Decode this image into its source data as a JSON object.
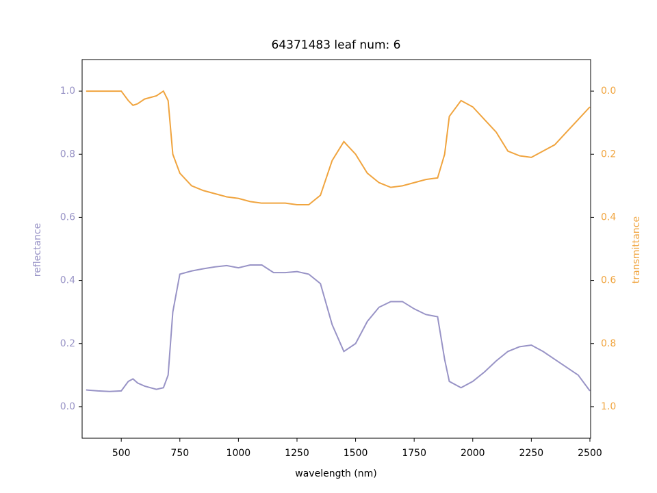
{
  "chart_data": {
    "type": "line",
    "title": "64371483 leaf num: 6",
    "xlabel": "wavelength (nm)",
    "ylabel": "reflectance",
    "y2label": "transmittance",
    "x": [
      350,
      400,
      450,
      500,
      530,
      550,
      570,
      600,
      650,
      680,
      700,
      720,
      750,
      800,
      850,
      900,
      950,
      1000,
      1050,
      1100,
      1150,
      1200,
      1250,
      1300,
      1350,
      1400,
      1450,
      1500,
      1550,
      1600,
      1650,
      1700,
      1750,
      1800,
      1850,
      1880,
      1900,
      1950,
      2000,
      2050,
      2100,
      2150,
      2200,
      2250,
      2300,
      2350,
      2400,
      2450,
      2500
    ],
    "series": [
      {
        "name": "reflectance",
        "color": "#9893c6",
        "values": [
          0.053,
          0.05,
          0.048,
          0.05,
          0.08,
          0.088,
          0.075,
          0.065,
          0.055,
          0.06,
          0.1,
          0.3,
          0.42,
          0.43,
          0.437,
          0.443,
          0.447,
          0.44,
          0.449,
          0.449,
          0.425,
          0.425,
          0.428,
          0.42,
          0.39,
          0.26,
          0.175,
          0.2,
          0.27,
          0.315,
          0.333,
          0.333,
          0.31,
          0.292,
          0.285,
          0.15,
          0.08,
          0.06,
          0.08,
          0.11,
          0.145,
          0.175,
          0.19,
          0.195,
          0.175,
          0.15,
          0.125,
          0.1,
          0.05
        ]
      },
      {
        "name": "transmittance",
        "color": "#f0a43e",
        "axis": "y2",
        "values": [
          0,
          0,
          0,
          0,
          0.03,
          0.045,
          0.04,
          0.025,
          0.015,
          0,
          0.03,
          0.2,
          0.26,
          0.3,
          0.315,
          0.325,
          0.335,
          0.34,
          0.35,
          0.355,
          0.355,
          0.355,
          0.36,
          0.36,
          0.33,
          0.22,
          0.16,
          0.2,
          0.26,
          0.29,
          0.305,
          0.3,
          0.29,
          0.28,
          0.275,
          0.2,
          0.08,
          0.03,
          0.05,
          0.09,
          0.13,
          0.19,
          0.205,
          0.21,
          0.19,
          0.17,
          0.13,
          0.09,
          0.05
        ]
      }
    ],
    "xlim": [
      333,
      2503
    ],
    "xticks": [
      500,
      750,
      1000,
      1250,
      1500,
      1750,
      2000,
      2250,
      2500
    ],
    "ylim": [
      -0.1,
      1.1
    ],
    "yticks": [
      {
        "value": 0,
        "label": "0.0"
      },
      0.2,
      0.4,
      0.6,
      0.8,
      {
        "value": 1,
        "label": "1.0"
      }
    ],
    "y2lim": [
      1.1,
      -0.1
    ],
    "y2ticks": [
      {
        "value": 0,
        "label": "0.0"
      },
      0.2,
      0.4,
      0.6,
      0.8,
      {
        "value": 1,
        "label": "1.0"
      }
    ],
    "grid": false
  }
}
